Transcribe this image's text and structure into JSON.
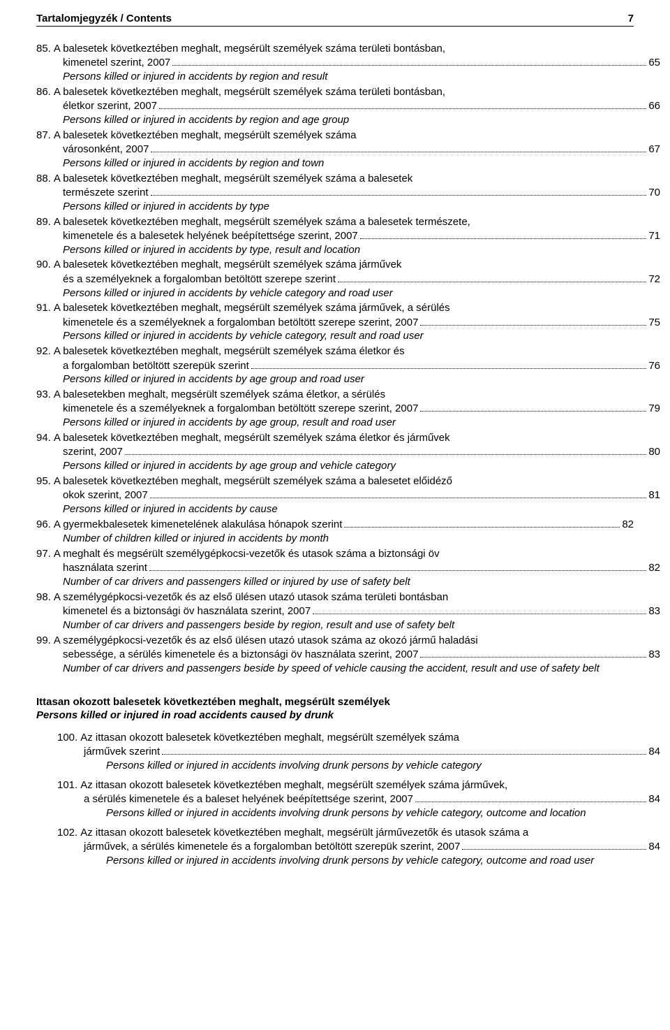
{
  "header": {
    "title": "Tartalomjegyzék / Contents",
    "page_number": "7"
  },
  "styling": {
    "background_color": "#ffffff",
    "text_color": "#000000",
    "font_family": "Arial",
    "body_font_size_pt": 11,
    "header_underline_color": "#000000",
    "dot_leader_color": "#000000"
  },
  "entries": [
    {
      "num": "85.",
      "lines": [
        "A balesetek következtében meghalt, megsérült személyek száma területi bontásban,",
        "kimenetel szerint, 2007"
      ],
      "page": "65",
      "sub": "Persons killed or injured in accidents by region and result"
    },
    {
      "num": "86.",
      "lines": [
        "A balesetek következtében meghalt, megsérült személyek száma területi bontásban,",
        "életkor szerint, 2007"
      ],
      "page": "66",
      "sub": "Persons killed or injured in accidents by region and age group"
    },
    {
      "num": "87.",
      "lines": [
        "A balesetek következtében meghalt, megsérült személyek száma",
        "városonként, 2007"
      ],
      "page": "67",
      "sub": "Persons killed or injured in accidents by region and town"
    },
    {
      "num": "88.",
      "lines": [
        "A balesetek következtében meghalt, megsérült személyek száma a balesetek",
        "természete szerint"
      ],
      "page": "70",
      "sub": "Persons killed or injured in accidents by type"
    },
    {
      "num": "89.",
      "lines": [
        "A balesetek következtében meghalt, megsérült személyek száma a balesetek természete,",
        "kimenetele és a balesetek helyének beépítettsége szerint, 2007"
      ],
      "page": "71",
      "sub": "Persons killed or injured in accidents by type, result and location"
    },
    {
      "num": "90.",
      "lines": [
        "A balesetek következtében meghalt, megsérült személyek száma járművek",
        "és a személyeknek a forgalomban betöltött szerepe szerint"
      ],
      "page": "72",
      "sub": "Persons killed or injured in accidents by vehicle category and road user"
    },
    {
      "num": "91.",
      "lines": [
        "A balesetek következtében meghalt, megsérült személyek száma járművek, a sérülés",
        "kimenetele és a személyeknek a forgalomban betöltött szerepe szerint, 2007"
      ],
      "page": "75",
      "sub": "Persons killed or injured in accidents by vehicle category, result and road user"
    },
    {
      "num": "92.",
      "lines": [
        "A balesetek következtében meghalt, megsérült személyek száma életkor és",
        "a forgalomban betöltött szerepük szerint"
      ],
      "page": "76",
      "sub": "Persons killed or injured in accidents by age group and road user"
    },
    {
      "num": "93.",
      "lines": [
        "A balesetekben meghalt, megsérült személyek száma életkor, a sérülés",
        "kimenetele és a személyeknek a forgalomban betöltött szerepe szerint, 2007"
      ],
      "page": "79",
      "sub": "Persons killed or injured in accidents by age group, result and road user"
    },
    {
      "num": "94.",
      "lines": [
        "A balesetek következtében meghalt, megsérült személyek száma életkor és járművek",
        "szerint, 2007"
      ],
      "page": "80",
      "sub": "Persons killed or injured in accidents by age group and vehicle category"
    },
    {
      "num": "95.",
      "lines": [
        "A balesetek következtében meghalt, megsérült személyek száma a balesetet előidéző",
        "okok szerint, 2007"
      ],
      "page": "81",
      "sub": "Persons killed or injured in accidents by cause"
    },
    {
      "num": "96.",
      "lines": [
        "A gyermekbalesetek kimenetelének alakulása hónapok szerint"
      ],
      "page": "82",
      "sub": "Number of children killed or injured in accidents by month"
    },
    {
      "num": "97.",
      "lines": [
        "A meghalt és megsérült személygépkocsi-vezetők és utasok száma a biztonsági öv",
        "használata szerint"
      ],
      "page": "82",
      "sub": "Number of car drivers and passengers killed or injured by use of safety belt"
    },
    {
      "num": "98.",
      "lines": [
        "A személygépkocsi-vezetők és az első ülésen utazó utasok száma területi bontásban",
        "kimenetel és a biztonsági öv használata szerint, 2007"
      ],
      "page": "83",
      "sub": "Number of car drivers and passengers beside by region, result and use of safety belt"
    },
    {
      "num": "99.",
      "lines": [
        "A személygépkocsi-vezetők és az első ülésen utazó utasok száma az okozó jármű haladási",
        "sebessége, a sérülés kimenetele és a biztonsági öv használata szerint, 2007"
      ],
      "page": "83",
      "sub": "Number of car drivers and passengers beside by speed of vehicle causing the accident, result and use of safety belt",
      "sub_wrap": true
    }
  ],
  "section": {
    "title_hu": "Ittasan okozott balesetek következtében meghalt, megsérült személyek",
    "title_en": "Persons killed or injured in road accidents caused by drunk"
  },
  "entries2": [
    {
      "num": "100.",
      "lines": [
        "Az ittasan okozott balesetek következtében meghalt, megsérült személyek száma",
        "járművek szerint"
      ],
      "page": "84",
      "sub": "Persons killed or injured in accidents involving drunk persons by vehicle category"
    },
    {
      "num": "101.",
      "lines": [
        "Az ittasan okozott balesetek következtében meghalt, megsérült személyek száma járművek,",
        "a sérülés kimenetele és a baleset helyének beépítettsége szerint, 2007"
      ],
      "page": "84",
      "sub": "Persons killed or injured in accidents involving drunk persons by vehicle category, outcome and location",
      "sub_wrap": true
    },
    {
      "num": "102.",
      "lines": [
        "Az ittasan okozott balesetek következtében meghalt, megsérült járművezetők és utasok száma a",
        "járművek, a sérülés kimenetele és a forgalomban betöltött szerepük szerint, 2007"
      ],
      "page": "84",
      "sub": "Persons killed or injured in accidents involving drunk persons by vehicle category, outcome and road user",
      "sub_wrap": true
    }
  ]
}
